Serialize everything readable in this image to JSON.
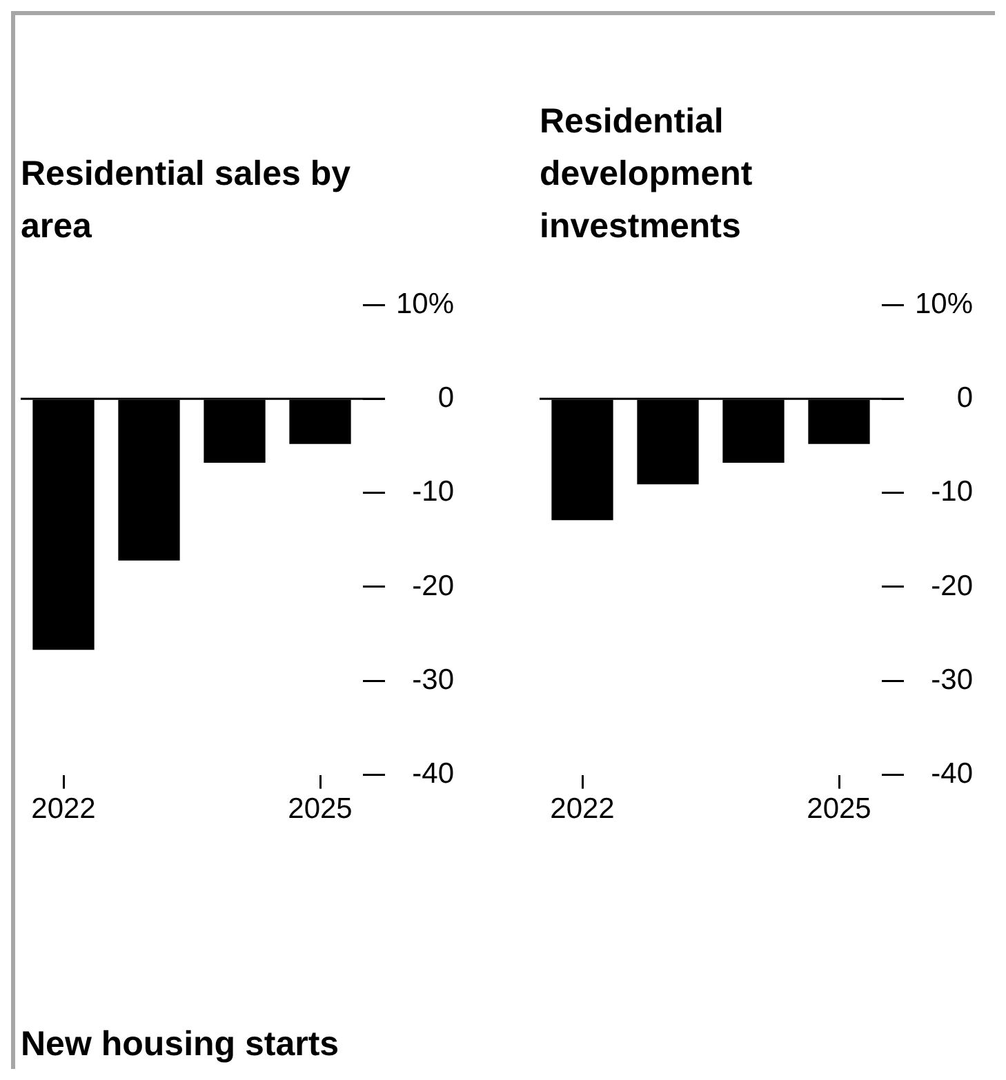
{
  "chart_data": [
    {
      "type": "bar",
      "title": "Residential sales by area",
      "categories": [
        "2022",
        null,
        null,
        "2025"
      ],
      "values": [
        -26.7,
        -17.2,
        -6.8,
        -4.8
      ],
      "color": "#000000",
      "ylim": [
        -40,
        10
      ],
      "yticks": [
        {
          "value": 10,
          "label": "10%"
        },
        0,
        -10,
        -20,
        -30,
        -40
      ],
      "ref_lines": [
        {
          "axis": "y",
          "value": 0,
          "color": "#000000"
        }
      ]
    },
    {
      "type": "bar",
      "title": "Residential development investments",
      "categories": [
        "2022",
        null,
        null,
        "2025"
      ],
      "values": [
        -12.9,
        -9.1,
        -6.8,
        -4.8
      ],
      "color": "#000000",
      "ylim": [
        -40,
        10
      ],
      "yticks": [
        {
          "value": 10,
          "label": "10%"
        },
        0,
        -10,
        -20,
        -30,
        -40
      ],
      "ref_lines": [
        {
          "axis": "y",
          "value": 0,
          "color": "#000000"
        }
      ]
    },
    {
      "type": "other",
      "title": "New housing starts"
    }
  ]
}
